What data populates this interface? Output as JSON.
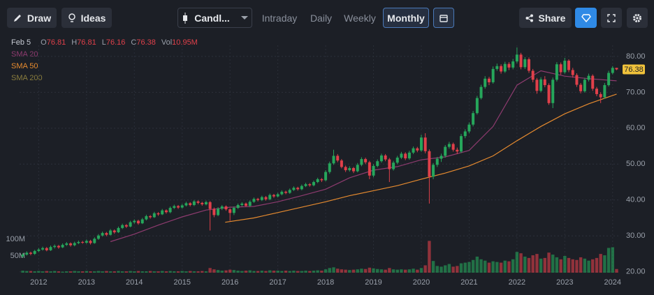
{
  "toolbar": {
    "draw": "Draw",
    "ideas": "Ideas",
    "chart_type": "Candl...",
    "timeframes": [
      "Intraday",
      "Daily",
      "Weekly",
      "Monthly"
    ],
    "active": "Monthly",
    "share": "Share"
  },
  "chart_data": {
    "type": "candlestick",
    "header": {
      "date": "Feb 5",
      "items": [
        {
          "label": "O",
          "value": "76.81"
        },
        {
          "label": "H",
          "value": "76.81"
        },
        {
          "label": "L",
          "value": "76.16"
        },
        {
          "label": "C",
          "value": "76.38"
        },
        {
          "label": "Vol",
          "value": "10.95M"
        }
      ]
    },
    "up_color": "#26a65b",
    "down_color": "#e0404a",
    "xlim": [
      2011.6,
      2024.12
    ],
    "xticks": [
      2012,
      2013,
      2014,
      2015,
      2016,
      2017,
      2018,
      2019,
      2020,
      2021,
      2022,
      2023,
      2024
    ],
    "ylim": [
      18,
      86
    ],
    "yticks": [
      {
        "value": 20,
        "label": "20.00"
      },
      {
        "value": 30,
        "label": "30.00"
      },
      {
        "value": 40,
        "label": "40.00"
      },
      {
        "value": 50,
        "label": "50.00"
      },
      {
        "value": 60,
        "label": "60.00"
      },
      {
        "value": 70,
        "label": "70.00"
      },
      {
        "value": 80,
        "label": "80.00"
      }
    ],
    "vlim": [
      0,
      200
    ],
    "vticks": [
      {
        "value": 50,
        "label": "50M"
      },
      {
        "value": 100,
        "label": "100M"
      }
    ],
    "grid": true,
    "last_price": {
      "value": 76.38,
      "label": "76.38",
      "color": "#f0c23b"
    },
    "x": [
      2011.667,
      2011.75,
      2011.833,
      2011.917,
      2012,
      2012.083,
      2012.167,
      2012.25,
      2012.333,
      2012.417,
      2012.5,
      2012.583,
      2012.667,
      2012.75,
      2012.833,
      2012.917,
      2013,
      2013.083,
      2013.167,
      2013.25,
      2013.333,
      2013.417,
      2013.5,
      2013.583,
      2013.667,
      2013.75,
      2013.833,
      2013.917,
      2014,
      2014.083,
      2014.167,
      2014.25,
      2014.333,
      2014.417,
      2014.5,
      2014.583,
      2014.667,
      2014.75,
      2014.833,
      2014.917,
      2015,
      2015.083,
      2015.167,
      2015.25,
      2015.333,
      2015.417,
      2015.5,
      2015.583,
      2015.667,
      2015.75,
      2015.833,
      2015.917,
      2016,
      2016.083,
      2016.167,
      2016.25,
      2016.333,
      2016.417,
      2016.5,
      2016.583,
      2016.667,
      2016.75,
      2016.833,
      2016.917,
      2017,
      2017.083,
      2017.167,
      2017.25,
      2017.333,
      2017.417,
      2017.5,
      2017.583,
      2017.667,
      2017.75,
      2017.833,
      2017.917,
      2018,
      2018.083,
      2018.167,
      2018.25,
      2018.333,
      2018.417,
      2018.5,
      2018.583,
      2018.667,
      2018.75,
      2018.833,
      2018.917,
      2019,
      2019.083,
      2019.167,
      2019.25,
      2019.333,
      2019.417,
      2019.5,
      2019.583,
      2019.667,
      2019.75,
      2019.833,
      2019.917,
      2020,
      2020.083,
      2020.167,
      2020.25,
      2020.333,
      2020.417,
      2020.5,
      2020.583,
      2020.667,
      2020.75,
      2020.833,
      2020.917,
      2021,
      2021.083,
      2021.167,
      2021.25,
      2021.333,
      2021.417,
      2021.5,
      2021.583,
      2021.667,
      2021.75,
      2021.833,
      2021.917,
      2022,
      2022.083,
      2022.167,
      2022.25,
      2022.333,
      2022.417,
      2022.5,
      2022.583,
      2022.667,
      2022.75,
      2022.833,
      2022.917,
      2023,
      2023.083,
      2023.167,
      2023.25,
      2023.333,
      2023.417,
      2023.5,
      2023.583,
      2023.667,
      2023.75,
      2023.833,
      2023.917,
      2024,
      2024.083
    ],
    "ohlc": [
      [
        24.3,
        25.2,
        23.9,
        24.8
      ],
      [
        24.8,
        25.7,
        24.5,
        25.3
      ],
      [
        25.3,
        25.6,
        24.6,
        25.0
      ],
      [
        25.0,
        26.1,
        24.7,
        25.8
      ],
      [
        25.8,
        26.6,
        25.5,
        26.2
      ],
      [
        26.2,
        27.0,
        25.9,
        26.6
      ],
      [
        26.6,
        26.9,
        25.7,
        26.0
      ],
      [
        26.0,
        27.3,
        25.8,
        26.9
      ],
      [
        26.9,
        27.6,
        26.5,
        27.2
      ],
      [
        27.2,
        27.5,
        26.4,
        26.8
      ],
      [
        26.8,
        27.9,
        26.6,
        27.5
      ],
      [
        27.5,
        28.3,
        27.2,
        27.9
      ],
      [
        27.9,
        28.2,
        27.0,
        27.4
      ],
      [
        27.4,
        28.4,
        27.1,
        28.0
      ],
      [
        28.0,
        28.7,
        27.7,
        28.3
      ],
      [
        28.3,
        28.6,
        27.8,
        28.1
      ],
      [
        28.1,
        29.0,
        27.8,
        28.6
      ],
      [
        28.6,
        28.9,
        27.6,
        28.0
      ],
      [
        28.0,
        29.6,
        27.8,
        29.2
      ],
      [
        29.2,
        30.5,
        28.9,
        30.1
      ],
      [
        30.1,
        31.2,
        29.8,
        30.8
      ],
      [
        30.8,
        31.1,
        29.9,
        30.3
      ],
      [
        30.3,
        31.9,
        30.1,
        31.5
      ],
      [
        31.5,
        31.8,
        30.6,
        31.0
      ],
      [
        31.0,
        32.6,
        30.8,
        32.2
      ],
      [
        32.2,
        33.4,
        31.9,
        33.0
      ],
      [
        33.0,
        33.3,
        32.2,
        32.6
      ],
      [
        32.6,
        34.2,
        32.4,
        33.8
      ],
      [
        33.8,
        34.6,
        33.4,
        34.2
      ],
      [
        34.2,
        34.5,
        33.1,
        33.5
      ],
      [
        33.5,
        35.0,
        33.3,
        34.6
      ],
      [
        34.6,
        35.9,
        34.3,
        35.5
      ],
      [
        35.5,
        35.8,
        34.8,
        35.2
      ],
      [
        35.2,
        36.7,
        35.0,
        36.3
      ],
      [
        36.3,
        36.6,
        35.6,
        36.0
      ],
      [
        36.0,
        37.5,
        35.8,
        37.1
      ],
      [
        37.1,
        37.4,
        36.2,
        36.6
      ],
      [
        36.6,
        38.2,
        36.3,
        37.8
      ],
      [
        37.8,
        38.7,
        37.5,
        38.3
      ],
      [
        38.3,
        38.6,
        37.5,
        37.9
      ],
      [
        37.9,
        38.9,
        37.6,
        38.5
      ],
      [
        38.5,
        39.5,
        38.2,
        39.1
      ],
      [
        39.1,
        39.4,
        38.2,
        38.6
      ],
      [
        38.6,
        40.0,
        38.3,
        39.6
      ],
      [
        39.6,
        39.9,
        38.8,
        39.2
      ],
      [
        39.2,
        39.5,
        38.4,
        38.8
      ],
      [
        38.8,
        39.8,
        38.5,
        39.4
      ],
      [
        39.4,
        39.7,
        31.5,
        37.5
      ],
      [
        37.5,
        37.9,
        35.2,
        35.8
      ],
      [
        35.8,
        38.0,
        35.5,
        37.6
      ],
      [
        37.6,
        38.6,
        37.2,
        38.2
      ],
      [
        38.2,
        38.5,
        37.0,
        37.4
      ],
      [
        37.4,
        37.7,
        34.2,
        36.4
      ],
      [
        36.4,
        38.2,
        35.8,
        37.8
      ],
      [
        37.8,
        39.0,
        37.5,
        38.6
      ],
      [
        38.6,
        39.4,
        38.2,
        39.0
      ],
      [
        39.0,
        39.3,
        38.0,
        38.4
      ],
      [
        38.4,
        39.9,
        38.0,
        39.5
      ],
      [
        39.5,
        40.7,
        39.2,
        40.3
      ],
      [
        40.3,
        40.6,
        39.6,
        40.0
      ],
      [
        40.0,
        41.2,
        39.7,
        40.8
      ],
      [
        40.8,
        41.1,
        39.8,
        40.2
      ],
      [
        40.2,
        41.8,
        39.9,
        41.4
      ],
      [
        41.4,
        41.7,
        40.6,
        41.0
      ],
      [
        41.0,
        42.0,
        40.7,
        41.6
      ],
      [
        41.6,
        42.7,
        41.3,
        42.3
      ],
      [
        42.3,
        42.6,
        41.6,
        42.0
      ],
      [
        42.0,
        43.2,
        41.7,
        42.8
      ],
      [
        42.8,
        43.8,
        42.5,
        43.4
      ],
      [
        43.4,
        43.7,
        42.6,
        43.0
      ],
      [
        43.0,
        44.3,
        42.7,
        43.9
      ],
      [
        43.9,
        44.8,
        43.6,
        44.4
      ],
      [
        44.4,
        44.7,
        43.7,
        44.1
      ],
      [
        44.1,
        45.4,
        43.8,
        45.0
      ],
      [
        45.0,
        46.2,
        44.7,
        45.8
      ],
      [
        45.8,
        46.1,
        45.0,
        45.5
      ],
      [
        45.5,
        48.3,
        45.2,
        47.8
      ],
      [
        47.8,
        50.7,
        47.3,
        50.2
      ],
      [
        50.2,
        54.0,
        49.8,
        52.3
      ],
      [
        52.3,
        52.8,
        50.5,
        51.0
      ],
      [
        51.0,
        51.4,
        48.8,
        49.2
      ],
      [
        49.2,
        49.6,
        47.8,
        48.3
      ],
      [
        48.3,
        49.4,
        47.9,
        48.9
      ],
      [
        48.9,
        49.2,
        47.5,
        48.0
      ],
      [
        48.0,
        50.3,
        47.7,
        49.8
      ],
      [
        49.8,
        51.9,
        49.4,
        51.4
      ],
      [
        51.4,
        51.8,
        50.0,
        50.5
      ],
      [
        50.5,
        50.9,
        45.8,
        46.8
      ],
      [
        46.8,
        50.0,
        46.3,
        49.5
      ],
      [
        49.5,
        51.3,
        49.1,
        50.8
      ],
      [
        50.8,
        52.9,
        50.4,
        52.4
      ],
      [
        52.4,
        52.8,
        50.8,
        51.3
      ],
      [
        51.3,
        51.7,
        45.0,
        48.6
      ],
      [
        48.6,
        50.9,
        48.2,
        50.4
      ],
      [
        50.4,
        52.3,
        50.0,
        51.8
      ],
      [
        51.8,
        53.4,
        51.4,
        52.9
      ],
      [
        52.9,
        53.3,
        51.1,
        51.6
      ],
      [
        51.6,
        53.7,
        51.2,
        53.2
      ],
      [
        53.2,
        54.9,
        52.8,
        54.4
      ],
      [
        54.4,
        54.8,
        53.3,
        53.8
      ],
      [
        53.8,
        58.2,
        53.4,
        57.4
      ],
      [
        57.4,
        58.6,
        53.0,
        53.6
      ],
      [
        53.6,
        54.1,
        39.0,
        46.5
      ],
      [
        46.5,
        50.3,
        45.8,
        49.8
      ],
      [
        49.8,
        52.0,
        49.2,
        51.5
      ],
      [
        51.5,
        52.9,
        50.6,
        52.3
      ],
      [
        52.3,
        55.3,
        51.8,
        54.8
      ],
      [
        54.8,
        56.2,
        54.3,
        55.6
      ],
      [
        55.6,
        56.0,
        53.5,
        54.0
      ],
      [
        54.0,
        54.6,
        52.8,
        53.5
      ],
      [
        53.5,
        58.4,
        53.1,
        57.8
      ],
      [
        57.8,
        59.7,
        57.2,
        59.1
      ],
      [
        59.1,
        61.6,
        58.6,
        61.0
      ],
      [
        61.0,
        64.8,
        60.5,
        64.2
      ],
      [
        64.2,
        69.0,
        63.8,
        68.4
      ],
      [
        68.4,
        72.1,
        68.0,
        71.5
      ],
      [
        71.5,
        74.5,
        71.0,
        73.8
      ],
      [
        73.8,
        74.3,
        72.0,
        72.8
      ],
      [
        72.8,
        77.2,
        72.4,
        76.5
      ],
      [
        76.5,
        78.0,
        76.0,
        77.3
      ],
      [
        77.3,
        77.8,
        75.2,
        75.8
      ],
      [
        75.8,
        78.5,
        75.4,
        77.9
      ],
      [
        77.9,
        78.4,
        76.2,
        76.9
      ],
      [
        76.9,
        79.3,
        76.4,
        78.6
      ],
      [
        78.6,
        82.5,
        78.1,
        80.5
      ],
      [
        80.5,
        81.0,
        76.4,
        77.0
      ],
      [
        77.0,
        79.8,
        76.5,
        79.2
      ],
      [
        79.2,
        79.7,
        75.4,
        76.0
      ],
      [
        76.0,
        76.5,
        72.8,
        73.5
      ],
      [
        73.5,
        74.0,
        69.6,
        70.4
      ],
      [
        70.4,
        74.2,
        70.0,
        73.6
      ],
      [
        73.6,
        74.5,
        71.4,
        72.0
      ],
      [
        72.0,
        72.5,
        66.5,
        67.0
      ],
      [
        67.0,
        74.1,
        65.6,
        73.5
      ],
      [
        73.5,
        78.4,
        73.0,
        77.8
      ],
      [
        77.8,
        78.3,
        74.9,
        75.6
      ],
      [
        75.6,
        79.6,
        75.2,
        78.8
      ],
      [
        78.8,
        79.2,
        75.6,
        76.2
      ],
      [
        76.2,
        76.8,
        74.1,
        74.8
      ],
      [
        74.8,
        75.3,
        71.5,
        72.1
      ],
      [
        72.1,
        72.6,
        69.7,
        70.3
      ],
      [
        70.3,
        74.0,
        69.9,
        73.5
      ],
      [
        73.5,
        75.2,
        73.0,
        74.6
      ],
      [
        74.6,
        75.0,
        70.4,
        71.0
      ],
      [
        71.0,
        71.5,
        68.9,
        69.5
      ],
      [
        69.5,
        70.0,
        67.0,
        68.6
      ],
      [
        68.6,
        72.6,
        68.2,
        72.0
      ],
      [
        72.0,
        76.0,
        71.6,
        75.4
      ],
      [
        75.4,
        77.3,
        75.0,
        76.81
      ],
      [
        76.81,
        76.81,
        76.16,
        76.38
      ]
    ],
    "volume": [
      6,
      5,
      5,
      4,
      5,
      4,
      5,
      4,
      5,
      4,
      3,
      4,
      4,
      5,
      4,
      4,
      5,
      4,
      4,
      5,
      4,
      5,
      4,
      4,
      5,
      4,
      4,
      5,
      4,
      5,
      4,
      4,
      5,
      4,
      4,
      5,
      4,
      5,
      4,
      4,
      5,
      4,
      5,
      4,
      4,
      5,
      4,
      14,
      10,
      8,
      6,
      7,
      9,
      8,
      6,
      5,
      6,
      7,
      5,
      5,
      6,
      5,
      7,
      6,
      6,
      5,
      6,
      5,
      6,
      5,
      5,
      6,
      5,
      6,
      7,
      6,
      10,
      14,
      16,
      12,
      10,
      9,
      8,
      9,
      10,
      12,
      11,
      15,
      13,
      11,
      10,
      9,
      14,
      10,
      9,
      10,
      9,
      10,
      12,
      9,
      14,
      22,
      95,
      35,
      20,
      18,
      22,
      26,
      18,
      20,
      28,
      30,
      32,
      38,
      48,
      40,
      36,
      30,
      34,
      32,
      30,
      36,
      34,
      40,
      62,
      58,
      48,
      44,
      52,
      56,
      42,
      44,
      60,
      54,
      46,
      40,
      50,
      44,
      40,
      38,
      46,
      42,
      36,
      40,
      44,
      56,
      52,
      74,
      76,
      10.95
    ],
    "indicators": [
      {
        "name": "SMA 20",
        "color": "#8e3b6f",
        "x": [
          2013.5,
          2014,
          2014.5,
          2015,
          2015.5,
          2016,
          2016.5,
          2017,
          2017.5,
          2018,
          2018.5,
          2019,
          2019.5,
          2020,
          2020.5,
          2021,
          2021.5,
          2022,
          2022.5,
          2023,
          2023.5,
          2024.083
        ],
        "values": [
          28.4,
          30.5,
          33,
          35.3,
          37.2,
          38.0,
          38.2,
          39.5,
          41.2,
          43.0,
          46.2,
          48.3,
          49.3,
          51.2,
          52.0,
          53.8,
          60.5,
          72.0,
          76.0,
          74.5,
          73.8,
          73.2
        ]
      },
      {
        "name": "SMA 50",
        "color": "#e58a2f",
        "x": [
          2015.9,
          2016.5,
          2017,
          2017.5,
          2018,
          2018.5,
          2019,
          2019.5,
          2020,
          2020.5,
          2021,
          2021.5,
          2022,
          2022.5,
          2023,
          2023.5,
          2024.083
        ],
        "values": [
          33.8,
          35.0,
          36.5,
          38.0,
          39.5,
          41.2,
          42.6,
          44.0,
          45.8,
          47.5,
          49.5,
          52.3,
          56.5,
          60.5,
          64.0,
          66.8,
          69.5
        ]
      },
      {
        "name": "SMA 200",
        "color": "#8a7d3e",
        "x": [],
        "values": []
      }
    ]
  }
}
